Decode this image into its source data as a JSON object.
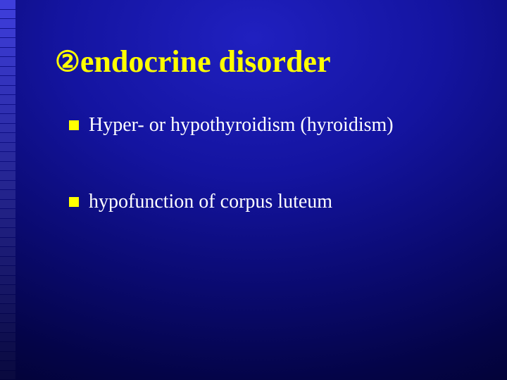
{
  "slide": {
    "title_prefix_glyph": "②",
    "title_text": "endocrine disorder",
    "title_color": "#ffff00",
    "body_text_color": "#ffffff",
    "bullet_marker_color": "#ffff00",
    "bullets": [
      {
        "text": "Hyper- or hypothyroidism (hyroidism)"
      },
      {
        "text": "hypofunction of corpus luteum"
      }
    ],
    "left_stripe": {
      "segments": 40,
      "color_top": "#3e3edc",
      "color_bottom": "#0a0a40"
    },
    "background": {
      "center_color": "#2020c0",
      "edge_color": "#010120"
    },
    "fonts": {
      "title_pt": 44,
      "body_pt": 28,
      "family": "Times New Roman"
    }
  }
}
